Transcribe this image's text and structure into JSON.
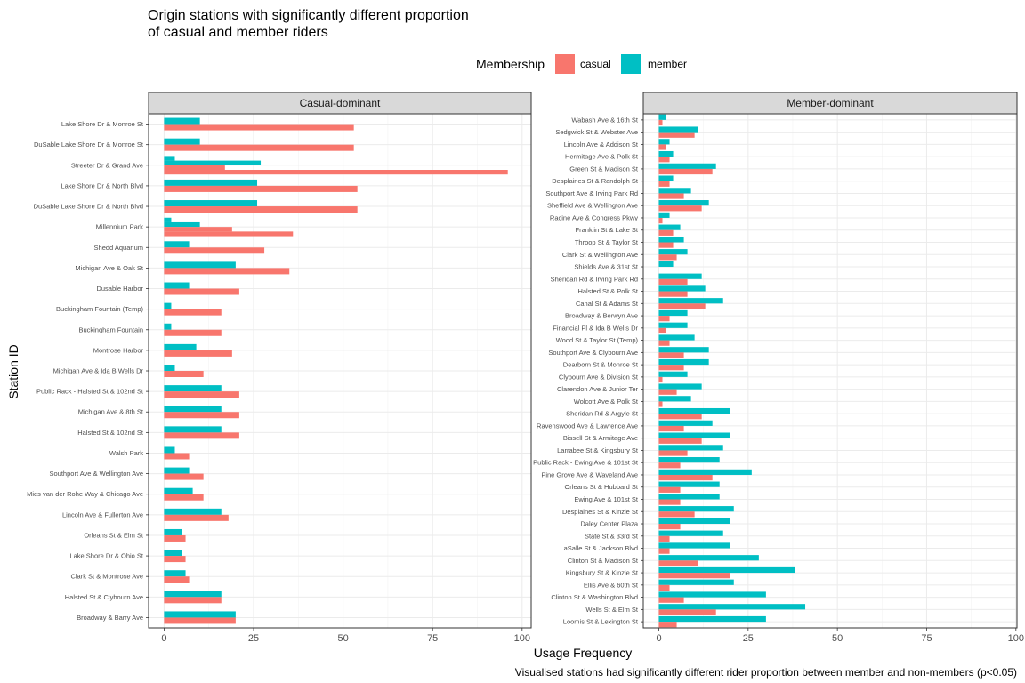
{
  "chart_data": {
    "type": "bar",
    "orientation": "horizontal",
    "title": "Origin stations with significantly different proportion of casual and member riders",
    "title_lines": [
      "Origin stations with significantly different proportion",
      "of casual and member riders"
    ],
    "xlabel": "Usage Frequency",
    "ylabel": "Station ID",
    "caption": "Visualised stations had significantly different rider proportion between member and non-members (p<0.05)",
    "xlim": [
      0,
      100
    ],
    "xticks": [
      0,
      25,
      50,
      75,
      100
    ],
    "grid": true,
    "legend": {
      "title": "Membership",
      "position": "top",
      "entries": [
        {
          "name": "casual",
          "color": "#F8766D"
        },
        {
          "name": "member",
          "color": "#00BFC4"
        }
      ]
    },
    "facets": [
      {
        "label": "Casual-dominant",
        "categories": [
          "Lake Shore Dr & Monroe St",
          "DuSable Lake Shore Dr & Monroe St",
          "Streeter Dr & Grand Ave",
          "Lake Shore Dr & North Blvd",
          "DuSable Lake Shore Dr & North Blvd",
          "Millennium Park",
          "Shedd Aquarium",
          "Michigan Ave & Oak St",
          "Dusable Harbor",
          "Buckingham Fountain (Temp)",
          "Buckingham Fountain",
          "Montrose Harbor",
          "Michigan Ave & Ida B Wells Dr",
          "Public Rack - Halsted St & 102nd St",
          "Michigan Ave & 8th St",
          "Halsted St & 102nd St",
          "Walsh Park",
          "Southport Ave & Wellington Ave",
          "Mies van der Rohe Way & Chicago Ave",
          "Lincoln Ave & Fullerton Ave",
          "Orleans St & Elm St",
          "Lake Shore Dr & Ohio St",
          "Clark St & Montrose Ave",
          "Halsted St & Clybourn Ave",
          "Broadway & Barry Ave"
        ],
        "series": [
          {
            "name": "casual",
            "values": [
              [
                53
              ],
              [
                53
              ],
              [
                17,
                96
              ],
              [
                54
              ],
              [
                54
              ],
              [
                19,
                36
              ],
              [
                28
              ],
              [
                35
              ],
              [
                21
              ],
              [
                16
              ],
              [
                16
              ],
              [
                19
              ],
              [
                11
              ],
              [
                21
              ],
              [
                21
              ],
              [
                21
              ],
              [
                7
              ],
              [
                11
              ],
              [
                11
              ],
              [
                18
              ],
              [
                6
              ],
              [
                6
              ],
              [
                7
              ],
              [
                16
              ],
              [
                20
              ]
            ]
          },
          {
            "name": "member",
            "values": [
              [
                10
              ],
              [
                10
              ],
              [
                3,
                27
              ],
              [
                26
              ],
              [
                26
              ],
              [
                2,
                10
              ],
              [
                7
              ],
              [
                20
              ],
              [
                7
              ],
              [
                2
              ],
              [
                2
              ],
              [
                9
              ],
              [
                3
              ],
              [
                16
              ],
              [
                16
              ],
              [
                16
              ],
              [
                3
              ],
              [
                7
              ],
              [
                8
              ],
              [
                16
              ],
              [
                5
              ],
              [
                5
              ],
              [
                6
              ],
              [
                16
              ],
              [
                20
              ]
            ]
          }
        ]
      },
      {
        "label": "Member-dominant",
        "categories": [
          "Wabash Ave & 16th St",
          "Sedgwick St & Webster Ave",
          "Lincoln Ave & Addison St",
          "Hermitage Ave & Polk St",
          "Green St & Madison St",
          "Desplaines St & Randolph St",
          "Southport Ave & Irving Park Rd",
          "Sheffield Ave & Wellington Ave",
          "Racine Ave & Congress Pkwy",
          "Franklin St & Lake St",
          "Throop St & Taylor St",
          "Clark St & Wellington Ave",
          "Shields Ave & 31st St",
          "Sheridan Rd & Irving Park Rd",
          "Halsted St & Polk St",
          "Canal St & Adams St",
          "Broadway & Berwyn Ave",
          "Financial Pl & Ida B Wells Dr",
          "Wood St & Taylor St (Temp)",
          "Southport Ave & Clybourn Ave",
          "Dearborn St & Monroe St",
          "Clybourn Ave & Division St",
          "Clarendon Ave & Junior Ter",
          "Wolcott Ave & Polk St",
          "Sheridan Rd & Argyle St",
          "Ravenswood Ave & Lawrence Ave",
          "Bissell St & Armitage Ave",
          "Larrabee St & Kingsbury St",
          "Public Rack - Ewing Ave & 101st St",
          "Pine Grove Ave & Waveland Ave",
          "Orleans St & Hubbard St",
          "Ewing Ave & 101st St",
          "Desplaines St & Kinzie St",
          "Daley Center Plaza",
          "State St & 33rd St",
          "LaSalle St & Jackson Blvd",
          "Clinton St & Madison St",
          "Kingsbury St & Kinzie St",
          "Ellis Ave & 60th St",
          "Clinton St & Washington Blvd",
          "Wells St & Elm St",
          "Loomis St & Lexington St"
        ],
        "series": [
          {
            "name": "casual",
            "values": [
              [
                1
              ],
              [
                10
              ],
              [
                2
              ],
              [
                3
              ],
              [
                15
              ],
              [
                3
              ],
              [
                7
              ],
              [
                12
              ],
              [
                1
              ],
              [
                4
              ],
              [
                4
              ],
              [
                5
              ],
              [
                0
              ],
              [
                8
              ],
              [
                8
              ],
              [
                13
              ],
              [
                3
              ],
              [
                2
              ],
              [
                3
              ],
              [
                7
              ],
              [
                7
              ],
              [
                1
              ],
              [
                5
              ],
              [
                1
              ],
              [
                12
              ],
              [
                7
              ],
              [
                12
              ],
              [
                8
              ],
              [
                6
              ],
              [
                15
              ],
              [
                6
              ],
              [
                6
              ],
              [
                10
              ],
              [
                6
              ],
              [
                3
              ],
              [
                3
              ],
              [
                11
              ],
              [
                20
              ],
              [
                3
              ],
              [
                7
              ],
              [
                16
              ],
              [
                5
              ]
            ]
          },
          {
            "name": "member",
            "values": [
              [
                2
              ],
              [
                11
              ],
              [
                3
              ],
              [
                4
              ],
              [
                16
              ],
              [
                4
              ],
              [
                9
              ],
              [
                14
              ],
              [
                3
              ],
              [
                6
              ],
              [
                7
              ],
              [
                8
              ],
              [
                4
              ],
              [
                12
              ],
              [
                13
              ],
              [
                18
              ],
              [
                8
              ],
              [
                8
              ],
              [
                10
              ],
              [
                14
              ],
              [
                14
              ],
              [
                8
              ],
              [
                12
              ],
              [
                9
              ],
              [
                20
              ],
              [
                15
              ],
              [
                20
              ],
              [
                18
              ],
              [
                17
              ],
              [
                26
              ],
              [
                17
              ],
              [
                17
              ],
              [
                21
              ],
              [
                20
              ],
              [
                18
              ],
              [
                20
              ],
              [
                28
              ],
              [
                38
              ],
              [
                21
              ],
              [
                30
              ],
              [
                41
              ],
              [
                30
              ]
            ]
          }
        ]
      }
    ]
  }
}
